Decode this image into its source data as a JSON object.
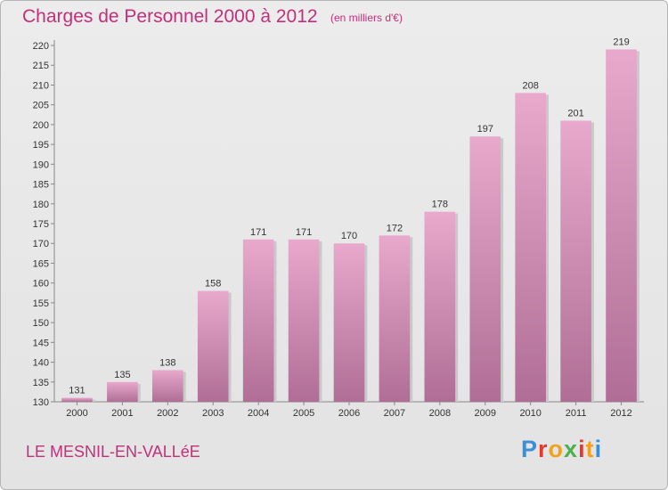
{
  "header": {
    "title": "Charges de Personnel 2000 à 2012",
    "subtitle": "(en milliers d'€)"
  },
  "footer": {
    "commune": "LE MESNIL-EN-VALLéE",
    "logo": {
      "letters": [
        "P",
        "r",
        "o",
        "x",
        "i",
        "t",
        "i"
      ],
      "colors": [
        "#3a8fd8",
        "#e23b2e",
        "#f2a21a",
        "#4caf50",
        "#e23b2e",
        "#f2a21a",
        "#3a8fd8"
      ]
    }
  },
  "colors": {
    "bar_top": "#e8a9cc",
    "bar_bottom": "#b06e96",
    "text_accent": "#c2307a"
  },
  "chart_data": {
    "type": "bar",
    "title": "Charges de Personnel 2000 à 2012",
    "subtitle": "(en milliers d'€)",
    "categories": [
      "2000",
      "2001",
      "2002",
      "2003",
      "2004",
      "2005",
      "2006",
      "2007",
      "2008",
      "2009",
      "2010",
      "2011",
      "2012"
    ],
    "values": [
      131,
      135,
      138,
      158,
      171,
      171,
      170,
      172,
      178,
      197,
      208,
      201,
      219
    ],
    "ylim": [
      130,
      220
    ],
    "yticks": [
      130,
      135,
      140,
      145,
      150,
      155,
      160,
      165,
      170,
      175,
      180,
      185,
      190,
      195,
      200,
      205,
      210,
      215,
      220
    ],
    "grid": false,
    "legend": "none"
  }
}
